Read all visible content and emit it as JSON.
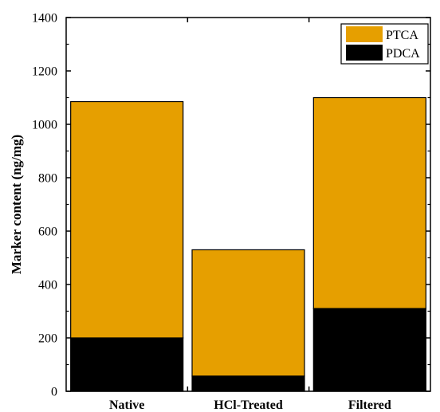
{
  "chart_data": {
    "type": "bar",
    "stacked": true,
    "categories": [
      "Native",
      "HCl-Treated",
      "Filtered"
    ],
    "series": [
      {
        "name": "PDCA",
        "values": [
          200,
          57,
          310
        ],
        "color": "#000000"
      },
      {
        "name": "PTCA",
        "values": [
          885,
          473,
          790
        ],
        "color": "#E69F00"
      }
    ],
    "title": "",
    "xlabel": "",
    "ylabel": "Marker content (ng/mg)",
    "ylim": [
      0,
      1400
    ],
    "yticks": [
      0,
      200,
      400,
      600,
      800,
      1000,
      1200,
      1400
    ],
    "grid": false,
    "legend": {
      "position": "top-right",
      "entries": [
        "PTCA",
        "PDCA"
      ]
    }
  }
}
